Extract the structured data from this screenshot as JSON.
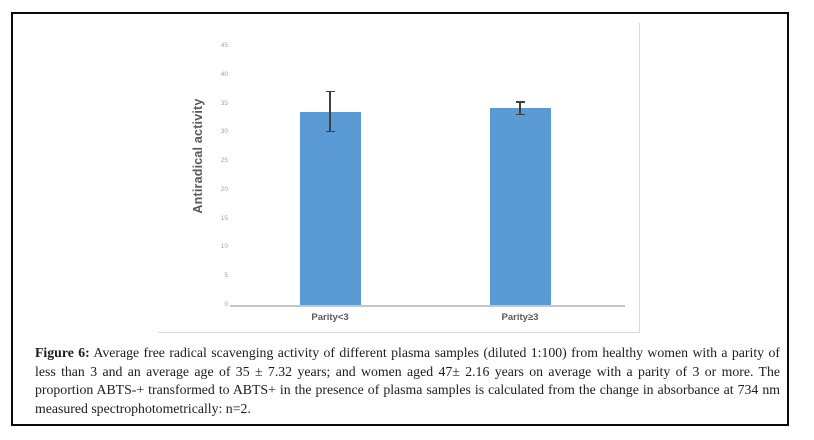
{
  "figure": {
    "caption_label": "Figure 6:",
    "caption_text": "Average free radical scavenging activity of different plasma samples (diluted 1:100) from healthy women with a parity of less than 3 and an average age of 35 ± 7.32 years; and women aged 47± 2.16 years on average with a parity of 3 or more. The proportion ABTS-+ transformed to ABTS+ in the presence of plasma samples is calculated from the change in absorbance at 734 nm measured spectrophotometrically: n=2."
  },
  "chart_data": {
    "type": "bar",
    "categories": [
      "Parity<3",
      "Parity≥3"
    ],
    "values": [
      33.6,
      34.2
    ],
    "error_bars": [
      3.6,
      1.2
    ],
    "title": "",
    "xlabel": "",
    "ylabel": "Antiradical activity",
    "ylim": [
      0,
      45
    ],
    "yticks": [
      0,
      5,
      10,
      15,
      20,
      25,
      30,
      35,
      40,
      45
    ],
    "grid": false,
    "legend": "none",
    "bar_color": "#5b9bd5",
    "error_bar_color": "#404040",
    "axis_line_color": "#c6c6c6",
    "tick_label_color": "#a3a3a3",
    "category_label_color": "#595959"
  }
}
